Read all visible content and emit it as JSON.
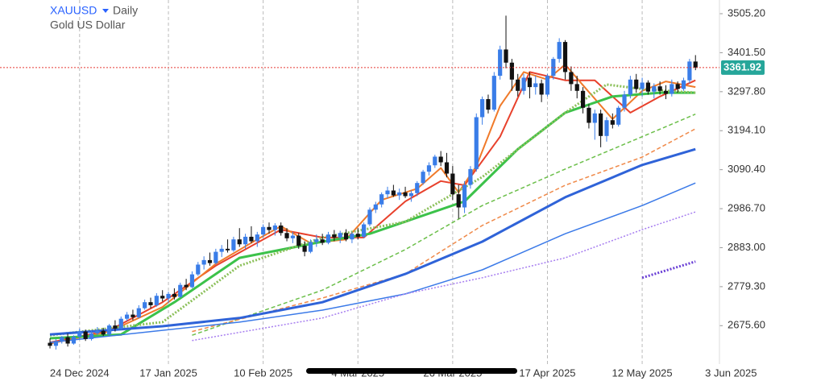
{
  "chart_data": {
    "type": "candlestick",
    "title": "XAUUSD",
    "interval": "Daily",
    "subtitle": "Gold US Dollar",
    "up_color": "#3a7de8",
    "down_color": "#111111",
    "grid": "x",
    "xlim": [
      -8.44,
      113.05
    ],
    "ylim": [
      2577.7,
      3541.6
    ],
    "xticks": [
      {
        "value": 5,
        "label": "24 Dec 2024"
      },
      {
        "value": 20,
        "label": "17 Jan 2025"
      },
      {
        "value": 36,
        "label": "10 Feb 2025"
      },
      {
        "value": 52,
        "label": "4 Mar 2025"
      },
      {
        "value": 68,
        "label": "26 Mar 2025"
      },
      {
        "value": 84,
        "label": "17 Apr 2025"
      },
      {
        "value": 100,
        "label": "12 May 2025"
      },
      {
        "value": 115,
        "label": "3 Jun 2025"
      }
    ],
    "yticks": [
      {
        "value": 3505.2,
        "label": "3505.20"
      },
      {
        "value": 3401.5,
        "label": "3401.50"
      },
      {
        "value": 3297.8,
        "label": "3297.80"
      },
      {
        "value": 3194.1,
        "label": "3194.10"
      },
      {
        "value": 3090.4,
        "label": "3090.40"
      },
      {
        "value": 2986.7,
        "label": "2986.70"
      },
      {
        "value": 2883,
        "label": "2883.00"
      },
      {
        "value": 2779.3,
        "label": "2779.30"
      },
      {
        "value": 2675.6,
        "label": "2675.60"
      }
    ],
    "last_price": 3361.92,
    "last_price_color": "#26a69a",
    "ohlc": [
      [
        2630,
        2642,
        2615,
        2622
      ],
      [
        2622,
        2640,
        2612,
        2634
      ],
      [
        2634,
        2648,
        2628,
        2645
      ],
      [
        2645,
        2655,
        2620,
        2628
      ],
      [
        2628,
        2650,
        2625,
        2646
      ],
      [
        2646,
        2668,
        2640,
        2660
      ],
      [
        2660,
        2665,
        2635,
        2640
      ],
      [
        2640,
        2662,
        2636,
        2655
      ],
      [
        2655,
        2672,
        2650,
        2662
      ],
      [
        2662,
        2670,
        2648,
        2652
      ],
      [
        2652,
        2680,
        2650,
        2676
      ],
      [
        2676,
        2690,
        2660,
        2668
      ],
      [
        2668,
        2700,
        2665,
        2694
      ],
      [
        2694,
        2712,
        2688,
        2705
      ],
      [
        2705,
        2718,
        2690,
        2698
      ],
      [
        2698,
        2730,
        2695,
        2722
      ],
      [
        2722,
        2745,
        2718,
        2738
      ],
      [
        2738,
        2750,
        2722,
        2730
      ],
      [
        2730,
        2762,
        2726,
        2755
      ],
      [
        2755,
        2770,
        2740,
        2748
      ],
      [
        2748,
        2766,
        2735,
        2760
      ],
      [
        2760,
        2775,
        2745,
        2752
      ],
      [
        2752,
        2790,
        2750,
        2784
      ],
      [
        2784,
        2800,
        2770,
        2778
      ],
      [
        2778,
        2820,
        2775,
        2812
      ],
      [
        2812,
        2845,
        2808,
        2838
      ],
      [
        2838,
        2860,
        2825,
        2850
      ],
      [
        2850,
        2870,
        2835,
        2842
      ],
      [
        2842,
        2880,
        2838,
        2872
      ],
      [
        2872,
        2890,
        2858,
        2880
      ],
      [
        2880,
        2905,
        2870,
        2876
      ],
      [
        2876,
        2912,
        2872,
        2905
      ],
      [
        2905,
        2935,
        2885,
        2892
      ],
      [
        2892,
        2920,
        2880,
        2912
      ],
      [
        2912,
        2940,
        2895,
        2900
      ],
      [
        2900,
        2925,
        2885,
        2918
      ],
      [
        2918,
        2945,
        2910,
        2938
      ],
      [
        2938,
        2950,
        2920,
        2930
      ],
      [
        2930,
        2948,
        2915,
        2942
      ],
      [
        2942,
        2950,
        2915,
        2922
      ],
      [
        2922,
        2935,
        2900,
        2908
      ],
      [
        2908,
        2925,
        2895,
        2915
      ],
      [
        2915,
        2922,
        2880,
        2888
      ],
      [
        2888,
        2900,
        2860,
        2872
      ],
      [
        2872,
        2905,
        2868,
        2898
      ],
      [
        2898,
        2918,
        2885,
        2905
      ],
      [
        2905,
        2920,
        2890,
        2896
      ],
      [
        2896,
        2925,
        2892,
        2918
      ],
      [
        2918,
        2930,
        2900,
        2910
      ],
      [
        2910,
        2928,
        2895,
        2922
      ],
      [
        2922,
        2932,
        2900,
        2905
      ],
      [
        2905,
        2925,
        2895,
        2920
      ],
      [
        2920,
        2935,
        2905,
        2912
      ],
      [
        2912,
        2950,
        2908,
        2945
      ],
      [
        2945,
        2990,
        2940,
        2984
      ],
      [
        2984,
        3005,
        2975,
        2998
      ],
      [
        2998,
        3030,
        2990,
        3025
      ],
      [
        3025,
        3045,
        3015,
        3035
      ],
      [
        3035,
        3050,
        3018,
        3022
      ],
      [
        3022,
        3040,
        3010,
        3030
      ],
      [
        3030,
        3045,
        3015,
        3020
      ],
      [
        3020,
        3035,
        3005,
        3028
      ],
      [
        3028,
        3060,
        3020,
        3055
      ],
      [
        3055,
        3090,
        3050,
        3085
      ],
      [
        3085,
        3110,
        3075,
        3102
      ],
      [
        3102,
        3130,
        3095,
        3125
      ],
      [
        3125,
        3140,
        3100,
        3110
      ],
      [
        3110,
        3135,
        3070,
        3080
      ],
      [
        3080,
        3100,
        3010,
        3025
      ],
      [
        3025,
        3050,
        2960,
        2990
      ],
      [
        2990,
        3060,
        2975,
        3050
      ],
      [
        3050,
        3100,
        3040,
        3092
      ],
      [
        3092,
        3240,
        3085,
        3230
      ],
      [
        3230,
        3285,
        3210,
        3278
      ],
      [
        3278,
        3290,
        3240,
        3250
      ],
      [
        3250,
        3350,
        3245,
        3340
      ],
      [
        3340,
        3420,
        3330,
        3410
      ],
      [
        3410,
        3500,
        3360,
        3375
      ],
      [
        3375,
        3385,
        3300,
        3330
      ],
      [
        3330,
        3345,
        3285,
        3300
      ],
      [
        3300,
        3345,
        3290,
        3335
      ],
      [
        3335,
        3350,
        3280,
        3310
      ],
      [
        3310,
        3340,
        3290,
        3320
      ],
      [
        3320,
        3330,
        3270,
        3290
      ],
      [
        3290,
        3345,
        3285,
        3340
      ],
      [
        3340,
        3390,
        3330,
        3385
      ],
      [
        3385,
        3440,
        3375,
        3430
      ],
      [
        3430,
        3435,
        3330,
        3350
      ],
      [
        3350,
        3365,
        3300,
        3318
      ],
      [
        3318,
        3340,
        3280,
        3300
      ],
      [
        3300,
        3310,
        3240,
        3255
      ],
      [
        3255,
        3265,
        3200,
        3215
      ],
      [
        3215,
        3250,
        3170,
        3240
      ],
      [
        3240,
        3250,
        3150,
        3180
      ],
      [
        3180,
        3230,
        3165,
        3222
      ],
      [
        3222,
        3240,
        3200,
        3210
      ],
      [
        3210,
        3260,
        3205,
        3255
      ],
      [
        3255,
        3300,
        3245,
        3290
      ],
      [
        3290,
        3340,
        3280,
        3330
      ],
      [
        3330,
        3345,
        3295,
        3305
      ],
      [
        3305,
        3335,
        3285,
        3322
      ],
      [
        3322,
        3328,
        3290,
        3298
      ],
      [
        3298,
        3320,
        3280,
        3312
      ],
      [
        3312,
        3325,
        3290,
        3300
      ],
      [
        3300,
        3315,
        3278,
        3292
      ],
      [
        3292,
        3330,
        3285,
        3318
      ],
      [
        3318,
        3325,
        3295,
        3305
      ],
      [
        3305,
        3335,
        3300,
        3328
      ],
      [
        3328,
        3385,
        3320,
        3378
      ],
      [
        3378,
        3395,
        3355,
        3361.92
      ]
    ],
    "series": [
      {
        "color": "#e8412c",
        "width": 2,
        "style": "solid",
        "x": [
          0,
          10,
          19,
          28,
          39,
          46,
          53,
          60,
          66,
          70,
          76,
          81,
          87,
          92,
          98,
          103,
          109
        ],
        "values": [
          2631,
          2663,
          2738,
          2835,
          2931,
          2910,
          2910,
          3006,
          3060,
          3049,
          3178,
          3350,
          3328,
          3328,
          3242,
          3285,
          3328
        ]
      },
      {
        "color": "#f07a2a",
        "width": 2,
        "style": "solid",
        "x": [
          0,
          10,
          19,
          28,
          35,
          39,
          44,
          50,
          56,
          62,
          66,
          69,
          72,
          76,
          80,
          84,
          87,
          90,
          95,
          100,
          104,
          109
        ],
        "values": [
          2628,
          2660,
          2725,
          2840,
          2905,
          2940,
          2895,
          2905,
          3010,
          3040,
          3095,
          3030,
          3100,
          3260,
          3350,
          3330,
          3370,
          3315,
          3225,
          3300,
          3325,
          3310
        ]
      },
      {
        "color": "#3cc24a",
        "width": 3,
        "style": "solid",
        "x": [
          0,
          12,
          21,
          32,
          46,
          54,
          62,
          70,
          79,
          87,
          95,
          103,
          109
        ],
        "values": [
          2642,
          2652,
          2738,
          2856,
          2899,
          2920,
          2963,
          3006,
          3145,
          3242,
          3285,
          3295,
          3295
        ]
      },
      {
        "color": "#8cc05a",
        "width": 3,
        "style": "dotted",
        "x": [
          0,
          19,
          32,
          46,
          60,
          73,
          87,
          94,
          100,
          109
        ],
        "values": [
          2650,
          2685,
          2835,
          2910,
          2952,
          3071,
          3242,
          3317,
          3305,
          3295
        ]
      },
      {
        "color": "#6cbf4a",
        "width": 1.5,
        "style": "dashed",
        "x": [
          24,
          46,
          60,
          73,
          87,
          100,
          109
        ],
        "values": [
          2650,
          2770,
          2878,
          2995,
          3092,
          3178,
          3238
        ]
      },
      {
        "color": "#f08a4a",
        "width": 1.5,
        "style": "dashed",
        "x": [
          24,
          46,
          60,
          73,
          87,
          100,
          109
        ],
        "values": [
          2660,
          2749,
          2813,
          2942,
          3049,
          3124,
          3199
        ]
      },
      {
        "color": "#2f63d8",
        "width": 3,
        "style": "solid",
        "x": [
          0,
          19,
          32,
          46,
          60,
          73,
          87,
          100,
          109
        ],
        "values": [
          2652,
          2674,
          2696,
          2738,
          2813,
          2899,
          3017,
          3103,
          3145
        ]
      },
      {
        "color": "#3b7ae8",
        "width": 1.5,
        "style": "solid",
        "x": [
          0,
          32,
          46,
          60,
          73,
          87,
          100,
          109
        ],
        "values": [
          2631,
          2685,
          2717,
          2760,
          2824,
          2920,
          2995,
          3055
        ]
      },
      {
        "color": "#a77ef0",
        "width": 1.5,
        "style": "dotted",
        "x": [
          24,
          46,
          60,
          73,
          87,
          100,
          109
        ],
        "values": [
          2636,
          2696,
          2760,
          2803,
          2856,
          2931,
          2978
        ]
      },
      {
        "color": "#6a3fd6",
        "width": 3,
        "style": "dotted",
        "x": [
          100,
          109
        ],
        "values": [
          2803,
          2846
        ]
      }
    ]
  }
}
